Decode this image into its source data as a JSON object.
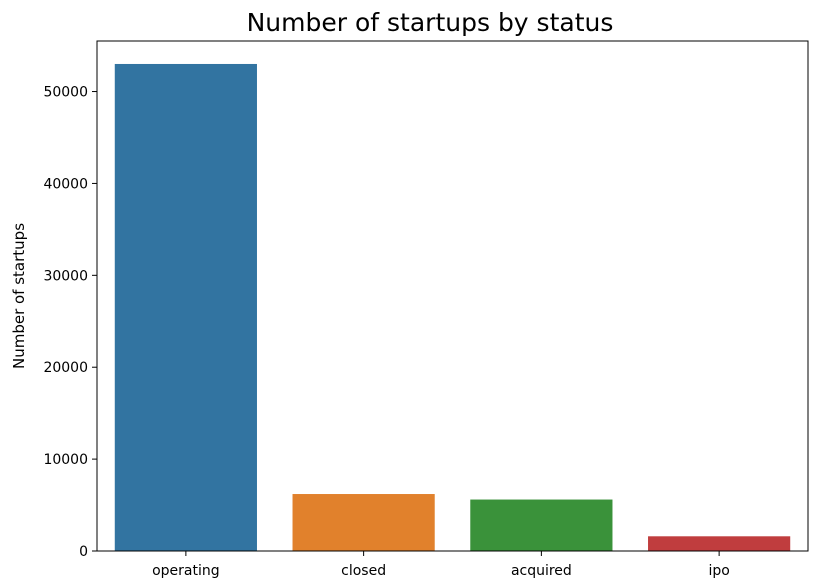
{
  "chart_data": {
    "type": "bar",
    "title": "Number of startups by status",
    "xlabel": "",
    "ylabel": "Number of startups",
    "categories": [
      "operating",
      "closed",
      "acquired",
      "ipo"
    ],
    "values": [
      53000,
      6200,
      5600,
      1600
    ],
    "colors": [
      "#3274a1",
      "#e1812c",
      "#3a923a",
      "#c03d3e"
    ],
    "ylim": [
      0,
      55500
    ],
    "yticks": [
      0,
      10000,
      20000,
      30000,
      40000,
      50000
    ],
    "grid": false,
    "legend": "none"
  }
}
